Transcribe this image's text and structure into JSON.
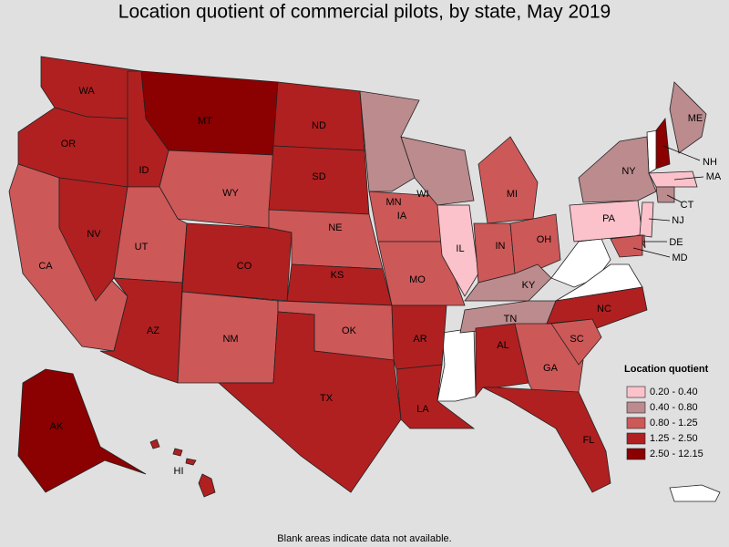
{
  "title": "Location quotient of commercial pilots, by state, May 2019",
  "footnote": "Blank areas indicate data not available.",
  "legend": {
    "title": "Location quotient",
    "items": [
      {
        "label": "0.20 - 0.40",
        "color": "#fcc2cb"
      },
      {
        "label": "0.40 - 0.80",
        "color": "#bb8b8e"
      },
      {
        "label": "0.80 - 1.25",
        "color": "#cd5858"
      },
      {
        "label": "1.25 - 2.50",
        "color": "#b02020"
      },
      {
        "label": "2.50 - 12.15",
        "color": "#8b0000"
      }
    ]
  },
  "states": [
    {
      "label": "WA",
      "class": 3
    },
    {
      "label": "OR",
      "class": 3
    },
    {
      "label": "CA",
      "class": 2
    },
    {
      "label": "NV",
      "class": 3
    },
    {
      "label": "ID",
      "class": 3
    },
    {
      "label": "MT",
      "class": 4
    },
    {
      "label": "WY",
      "class": 2
    },
    {
      "label": "UT",
      "class": 2
    },
    {
      "label": "AZ",
      "class": 3
    },
    {
      "label": "CO",
      "class": 3
    },
    {
      "label": "NM",
      "class": 2
    },
    {
      "label": "ND",
      "class": 3
    },
    {
      "label": "SD",
      "class": 3
    },
    {
      "label": "NE",
      "class": 2
    },
    {
      "label": "KS",
      "class": 3
    },
    {
      "label": "OK",
      "class": 2
    },
    {
      "label": "TX",
      "class": 3
    },
    {
      "label": "MN",
      "class": 1
    },
    {
      "label": "IA",
      "class": 2
    },
    {
      "label": "MO",
      "class": 2
    },
    {
      "label": "AR",
      "class": 3
    },
    {
      "label": "LA",
      "class": 3
    },
    {
      "label": "WI",
      "class": 1
    },
    {
      "label": "IL",
      "class": 0
    },
    {
      "label": "MI",
      "class": 2
    },
    {
      "label": "IN",
      "class": 2
    },
    {
      "label": "OH",
      "class": 2
    },
    {
      "label": "KY",
      "class": 1
    },
    {
      "label": "TN",
      "class": 1
    },
    {
      "label": "AL",
      "class": 3
    },
    {
      "label": "GA",
      "class": 2
    },
    {
      "label": "FL",
      "class": 3
    },
    {
      "label": "SC",
      "class": 2
    },
    {
      "label": "NC",
      "class": 3
    },
    {
      "label": "PA",
      "class": 0
    },
    {
      "label": "NY",
      "class": 1
    },
    {
      "label": "ME",
      "class": 1
    },
    {
      "label": "NH",
      "class": 4
    },
    {
      "label": "MA",
      "class": 0
    },
    {
      "label": "CT",
      "class": 1
    },
    {
      "label": "NJ",
      "class": 0
    },
    {
      "label": "DE",
      "class": 2
    },
    {
      "label": "MD",
      "class": 2
    },
    {
      "label": "AK",
      "class": 4
    },
    {
      "label": "HI",
      "class": 3
    }
  ]
}
